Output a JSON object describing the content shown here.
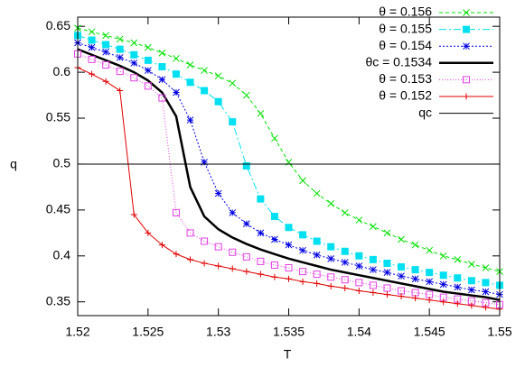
{
  "chart_data": {
    "type": "line",
    "xlabel": "T",
    "ylabel": "q",
    "xlim": [
      1.52,
      1.55
    ],
    "ylim": [
      0.335,
      0.66
    ],
    "xticks": [
      1.52,
      1.525,
      1.53,
      1.535,
      1.54,
      1.545,
      1.55
    ],
    "yticks": [
      0.35,
      0.4,
      0.45,
      0.5,
      0.55,
      0.6,
      0.65
    ],
    "legend": "top-right",
    "x": [
      1.52,
      1.521,
      1.522,
      1.523,
      1.524,
      1.525,
      1.526,
      1.527,
      1.528,
      1.529,
      1.53,
      1.531,
      1.532,
      1.533,
      1.534,
      1.535,
      1.536,
      1.537,
      1.538,
      1.539,
      1.54,
      1.541,
      1.542,
      1.543,
      1.544,
      1.545,
      1.546,
      1.547,
      1.548,
      1.549,
      1.55
    ],
    "series": [
      {
        "name": "θ = 0.156",
        "color": "#00e000",
        "marker": "x",
        "dash": "4,3",
        "values": [
          0.648,
          0.644,
          0.64,
          0.636,
          0.632,
          0.627,
          0.621,
          0.615,
          0.608,
          0.602,
          0.596,
          0.588,
          0.575,
          0.555,
          0.528,
          0.502,
          0.482,
          0.468,
          0.457,
          0.447,
          0.439,
          0.432,
          0.425,
          0.418,
          0.412,
          0.406,
          0.4,
          0.396,
          0.391,
          0.387,
          0.383
        ]
      },
      {
        "name": "θ = 0.155",
        "color": "#00e0f0",
        "marker": "square",
        "dash": "8,3,2,3",
        "values": [
          0.64,
          0.635,
          0.63,
          0.625,
          0.619,
          0.613,
          0.606,
          0.598,
          0.589,
          0.58,
          0.568,
          0.546,
          0.498,
          0.462,
          0.443,
          0.431,
          0.423,
          0.416,
          0.41,
          0.405,
          0.4,
          0.396,
          0.392,
          0.388,
          0.385,
          0.382,
          0.379,
          0.376,
          0.373,
          0.371,
          0.368
        ]
      },
      {
        "name": "θ = 0.154",
        "color": "#0000e0",
        "marker": "asterisk",
        "dash": "2,2",
        "values": [
          0.632,
          0.627,
          0.622,
          0.616,
          0.61,
          0.602,
          0.592,
          0.578,
          0.548,
          0.502,
          0.468,
          0.447,
          0.435,
          0.425,
          0.418,
          0.412,
          0.406,
          0.401,
          0.397,
          0.393,
          0.389,
          0.385,
          0.382,
          0.378,
          0.375,
          0.372,
          0.369,
          0.366,
          0.363,
          0.361,
          0.358
        ]
      },
      {
        "name": "θc = 0.1534",
        "color": "#000000",
        "marker": "none",
        "width": 2.5,
        "values": [
          0.625,
          0.619,
          0.613,
          0.607,
          0.6,
          0.591,
          0.578,
          0.552,
          0.475,
          0.443,
          0.429,
          0.42,
          0.413,
          0.407,
          0.402,
          0.397,
          0.393,
          0.389,
          0.385,
          0.382,
          0.379,
          0.376,
          0.373,
          0.37,
          0.367,
          0.364,
          0.361,
          0.359,
          0.357,
          0.355,
          0.352
        ]
      },
      {
        "name": "θ = 0.153",
        "color": "#e040e0",
        "marker": "square-open",
        "dash": "1,2",
        "values": [
          0.62,
          0.614,
          0.608,
          0.601,
          0.594,
          0.585,
          0.572,
          0.447,
          0.425,
          0.416,
          0.41,
          0.404,
          0.399,
          0.394,
          0.39,
          0.387,
          0.383,
          0.38,
          0.377,
          0.374,
          0.371,
          0.368,
          0.365,
          0.362,
          0.36,
          0.358,
          0.355,
          0.353,
          0.351,
          0.349,
          0.347
        ]
      },
      {
        "name": "θ = 0.152",
        "color": "#e00000",
        "marker": "plus",
        "values": [
          0.605,
          0.598,
          0.59,
          0.58,
          0.445,
          0.425,
          0.412,
          0.402,
          0.396,
          0.392,
          0.389,
          0.386,
          0.383,
          0.38,
          0.377,
          0.375,
          0.372,
          0.37,
          0.367,
          0.365,
          0.362,
          0.36,
          0.358,
          0.356,
          0.354,
          0.352,
          0.35,
          0.348,
          0.346,
          0.344,
          0.342
        ]
      },
      {
        "name": "qc",
        "color": "#000000",
        "marker": "none",
        "width": 1,
        "values": [
          0.5,
          0.5,
          0.5,
          0.5,
          0.5,
          0.5,
          0.5,
          0.5,
          0.5,
          0.5,
          0.5,
          0.5,
          0.5,
          0.5,
          0.5,
          0.5,
          0.5,
          0.5,
          0.5,
          0.5,
          0.5,
          0.5,
          0.5,
          0.5,
          0.5,
          0.5,
          0.5,
          0.5,
          0.5,
          0.5,
          0.5
        ]
      }
    ]
  }
}
